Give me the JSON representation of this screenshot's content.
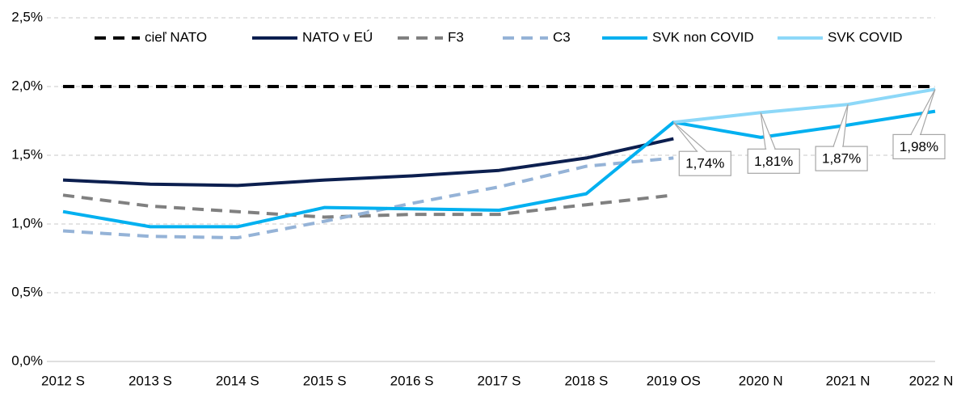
{
  "chart_data": {
    "type": "line",
    "categories": [
      "2012 S",
      "2013 S",
      "2014 S",
      "2015 S",
      "2016 S",
      "2017 S",
      "2018 S",
      "2019 OS",
      "2020 N",
      "2021 N",
      "2022 N"
    ],
    "series": [
      {
        "name": "cieľ NATO",
        "color": "#000000",
        "dashed": true,
        "values": [
          2.0,
          2.0,
          2.0,
          2.0,
          2.0,
          2.0,
          2.0,
          2.0,
          2.0,
          2.0,
          2.0
        ]
      },
      {
        "name": "NATO v EÚ",
        "color": "#0c1f4f",
        "dashed": false,
        "values": [
          1.32,
          1.29,
          1.28,
          1.32,
          1.35,
          1.39,
          1.48,
          1.62,
          null,
          null,
          null
        ]
      },
      {
        "name": "F3",
        "color": "#808080",
        "dashed": true,
        "values": [
          1.21,
          1.13,
          1.09,
          1.05,
          1.07,
          1.07,
          1.14,
          1.21,
          null,
          null,
          null
        ]
      },
      {
        "name": "C3",
        "color": "#95b3d7",
        "dashed": true,
        "values": [
          0.95,
          0.91,
          0.9,
          1.02,
          1.15,
          1.27,
          1.42,
          1.48,
          null,
          null,
          null
        ]
      },
      {
        "name": "SVK non COVID",
        "color": "#00b0f0",
        "dashed": false,
        "values": [
          1.09,
          0.98,
          0.98,
          1.12,
          1.11,
          1.1,
          1.22,
          1.74,
          1.63,
          1.72,
          1.82
        ]
      },
      {
        "name": "SVK COVID",
        "color": "#8dd8f8",
        "dashed": false,
        "values": [
          null,
          null,
          null,
          null,
          null,
          null,
          null,
          1.74,
          1.81,
          1.87,
          1.98
        ],
        "value_labels": [
          null,
          null,
          null,
          null,
          null,
          null,
          null,
          "1,74%",
          "1,81%",
          "1,87%",
          "1,98%"
        ]
      }
    ],
    "ylim": [
      0,
      2.5
    ],
    "yticks": [
      {
        "value": 0,
        "label": "0,0%"
      },
      {
        "value": 0.5,
        "label": "0,5%"
      },
      {
        "value": 1.0,
        "label": "1,0%"
      },
      {
        "value": 1.5,
        "label": "1,5%"
      },
      {
        "value": 2.0,
        "label": "2,0%"
      },
      {
        "value": 2.5,
        "label": "2,5%"
      }
    ],
    "grid": true,
    "legend": "top"
  }
}
